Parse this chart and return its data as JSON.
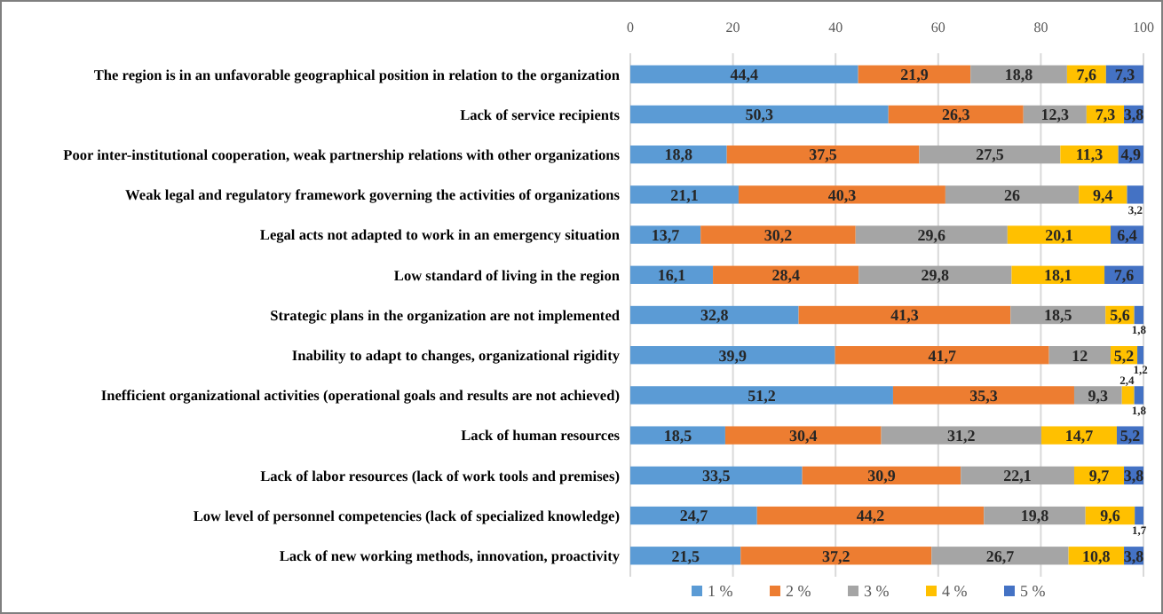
{
  "chart_data": {
    "type": "bar",
    "orientation": "horizontal",
    "stacked": true,
    "categories": [
      "The region is in an unfavorable geographical position in relation to the organization",
      "Lack of service recipients",
      "Poor inter-institutional cooperation, weak partnership relations with other organizations",
      "Weak legal and regulatory framework governing the activities of organizations",
      "Legal acts not adapted to work in an emergency situation",
      "Low standard of living in the region",
      "Strategic plans in the organization are not implemented",
      "Inability to adapt to changes, organizational rigidity",
      "Inefficient organizational activities (operational goals and results are not achieved)",
      "Lack of human resources",
      "Lack of labor resources (lack of work tools and premises)",
      "Low level of personnel competencies (lack of specialized knowledge)",
      "Lack of new working methods, innovation, proactivity"
    ],
    "series": [
      {
        "name": "1 %",
        "color": "#5b9bd5",
        "values": [
          44.4,
          50.3,
          18.8,
          21.1,
          13.7,
          16.1,
          32.8,
          39.9,
          51.2,
          18.5,
          33.5,
          24.7,
          21.5
        ],
        "value_labels": [
          "44,4",
          "50,3",
          "18,8",
          "21,1",
          "13,7",
          "16,1",
          "32,8",
          "39,9",
          "51,2",
          "18,5",
          "33,5",
          "24,7",
          "21,5"
        ]
      },
      {
        "name": "2 %",
        "color": "#ed7d31",
        "values": [
          21.9,
          26.3,
          37.5,
          40.3,
          30.2,
          28.4,
          41.3,
          41.7,
          35.3,
          30.4,
          30.9,
          44.2,
          37.2
        ],
        "value_labels": [
          "21,9",
          "26,3",
          "37,5",
          "40,3",
          "30,2",
          "28,4",
          "41,3",
          "41,7",
          "35,3",
          "30,4",
          "30,9",
          "44,2",
          "37,2"
        ]
      },
      {
        "name": "3 %",
        "color": "#a5a5a5",
        "values": [
          18.8,
          12.3,
          27.5,
          26,
          29.6,
          29.8,
          18.5,
          12,
          9.3,
          31.2,
          22.1,
          19.8,
          26.7
        ],
        "value_labels": [
          "18,8",
          "12,3",
          "27,5",
          "26",
          "29,6",
          "29,8",
          "18,5",
          "12",
          "9,3",
          "31,2",
          "22,1",
          "19,8",
          "26,7"
        ]
      },
      {
        "name": "4 %",
        "color": "#ffc000",
        "values": [
          7.6,
          7.3,
          11.3,
          9.4,
          20.1,
          18.1,
          5.6,
          5.2,
          2.4,
          14.7,
          9.7,
          9.6,
          10.8
        ],
        "value_labels": [
          "7,6",
          "7,3",
          "11,3",
          "9,4",
          "20,1",
          "18,1",
          "5,6",
          "5,2",
          "2,4",
          "14,7",
          "9,7",
          "9,6",
          "10,8"
        ]
      },
      {
        "name": "5 %",
        "color": "#4472c4",
        "values": [
          7.3,
          3.8,
          4.9,
          3.2,
          6.4,
          7.6,
          1.8,
          1.2,
          1.8,
          5.2,
          3.8,
          1.7,
          3.8
        ],
        "value_labels": [
          "7,3",
          "3,8",
          "4,9",
          "3,2",
          "6,4",
          "7,6",
          "1,8",
          "1,2",
          "1,8",
          "5,2",
          "3,8",
          "1,7",
          "3,8"
        ]
      }
    ],
    "xlim": [
      0,
      100
    ],
    "xticks": [
      0,
      20,
      40,
      60,
      80,
      100
    ],
    "grid": "x",
    "legend": "bottom"
  }
}
